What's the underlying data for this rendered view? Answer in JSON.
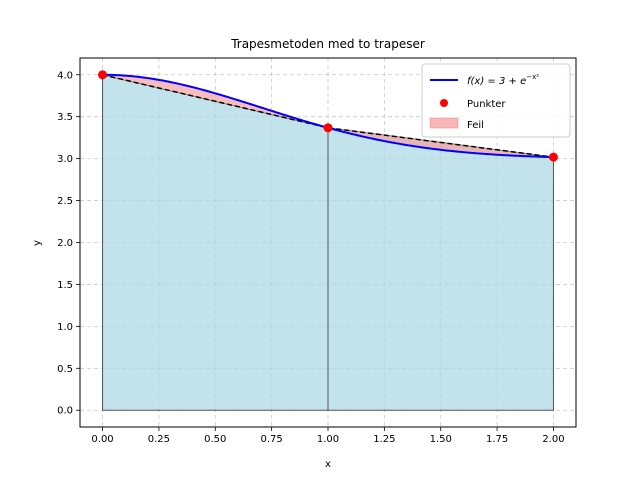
{
  "chart_data": {
    "type": "line",
    "title": "Trapesmetoden med to trapeser",
    "xlabel": "x",
    "ylabel": "y",
    "xlim": [
      -0.1,
      2.1
    ],
    "ylim": [
      -0.2,
      4.2
    ],
    "x_ticks": [
      "0.00",
      "0.25",
      "0.50",
      "0.75",
      "1.00",
      "1.25",
      "1.50",
      "1.75",
      "2.00"
    ],
    "y_ticks": [
      "0.0",
      "0.5",
      "1.0",
      "1.5",
      "2.0",
      "2.5",
      "3.0",
      "3.5",
      "4.0"
    ],
    "grid": true,
    "legend_position": "top-right",
    "series": [
      {
        "name": "f(x) = 3 + e^{-x²}",
        "type": "line",
        "color": "#0000ff",
        "function": "3 + exp(-x^2)",
        "x_range": [
          0,
          2
        ]
      },
      {
        "name": "Punkter",
        "type": "scatter",
        "color": "#ff0000",
        "x": [
          0,
          1,
          2
        ],
        "y": [
          4.0,
          3.368,
          3.018
        ]
      },
      {
        "name": "Feil",
        "type": "area",
        "color": "#f4a6a6",
        "description_free": true
      }
    ],
    "trapezoids": {
      "fill_color": "#add8e6",
      "edge_color": "#555555",
      "nodes_x": [
        0,
        1,
        2
      ],
      "nodes_y": [
        4.0,
        3.368,
        3.018
      ]
    },
    "legend": {
      "line_label_prefix": "f(x) = 3 + e",
      "line_label_sup": "−x²",
      "points_label": "Punkter",
      "error_label": "Feil"
    }
  }
}
